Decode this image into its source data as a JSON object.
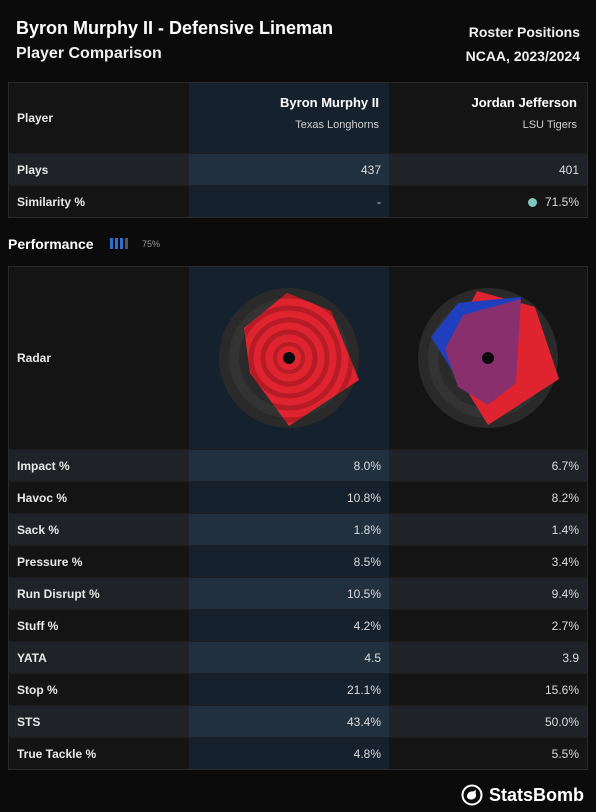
{
  "header": {
    "title": "Byron Murphy II - Defensive Lineman",
    "subtitle": "Player Comparison",
    "right_line1": "Roster Positions",
    "right_line2": "NCAA, 2023/2024"
  },
  "players": [
    {
      "name": "Byron Murphy II",
      "team": "Texas Longhorns"
    },
    {
      "name": "Jordan Jefferson",
      "team": "LSU Tigers"
    }
  ],
  "top_table": {
    "player_label": "Player",
    "rows": [
      {
        "label": "Plays",
        "values": [
          "437",
          "401"
        ]
      },
      {
        "label": "Similarity %",
        "values": [
          "-",
          "71.5%"
        ]
      }
    ],
    "similarity_dot_color": "#7ec8c0"
  },
  "performance": {
    "title": "Performance",
    "percent": "75%",
    "bars_on": 3,
    "bars_total": 4,
    "bar_color": "#2f6fd0"
  },
  "radar_label": "Radar",
  "colors": {
    "player1_radar": "#e0242f",
    "player2_radar": "#1f3fbf",
    "overlap": "#8a2f6e"
  },
  "metrics": [
    {
      "label": "Impact %",
      "values": [
        "8.0%",
        "6.7%"
      ]
    },
    {
      "label": "Havoc %",
      "values": [
        "10.8%",
        "8.2%"
      ]
    },
    {
      "label": "Sack %",
      "values": [
        "1.8%",
        "1.4%"
      ]
    },
    {
      "label": "Pressure %",
      "values": [
        "8.5%",
        "3.4%"
      ]
    },
    {
      "label": "Run Disrupt %",
      "values": [
        "10.5%",
        "9.4%"
      ]
    },
    {
      "label": "Stuff %",
      "values": [
        "4.2%",
        "2.7%"
      ]
    },
    {
      "label": "YATA",
      "values": [
        "4.5",
        "3.9"
      ]
    },
    {
      "label": "Stop %",
      "values": [
        "21.1%",
        "15.6%"
      ]
    },
    {
      "label": "STS",
      "values": [
        "43.4%",
        "50.0%"
      ]
    },
    {
      "label": "True Tackle %",
      "values": [
        "4.8%",
        "5.5%"
      ]
    }
  ],
  "footer": {
    "brand": "StatsBomb",
    "logo_icon": "statsbomb-logo-icon"
  }
}
